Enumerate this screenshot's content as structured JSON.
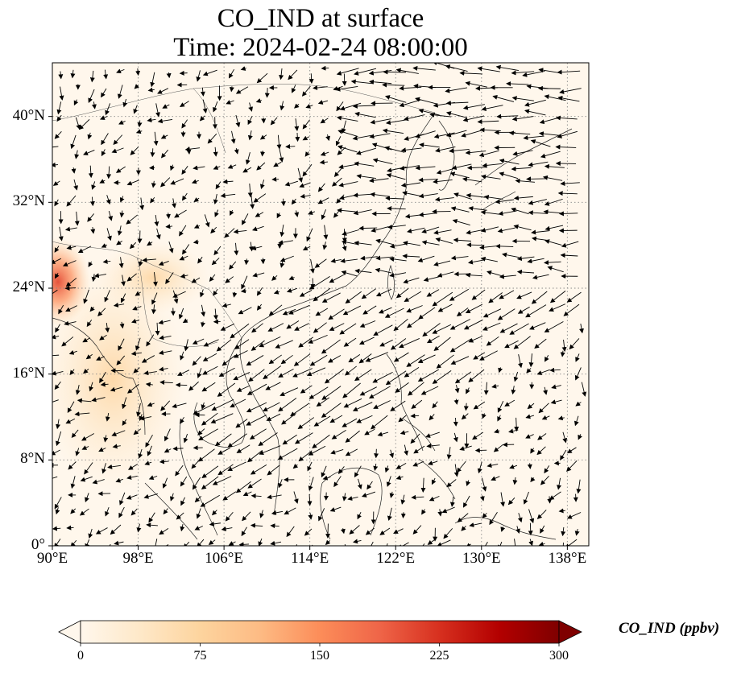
{
  "title_line1": "CO_IND at surface",
  "title_line2": "Time: 2024-02-24 08:00:00",
  "map": {
    "lon_range": [
      90,
      140
    ],
    "lat_range": [
      0,
      45
    ],
    "lon_ticks": [
      {
        "value": 90,
        "label": "90°E"
      },
      {
        "value": 98,
        "label": "98°E"
      },
      {
        "value": 106,
        "label": "106°E"
      },
      {
        "value": 114,
        "label": "114°E"
      },
      {
        "value": 122,
        "label": "122°E"
      },
      {
        "value": 130,
        "label": "130°E"
      },
      {
        "value": 138,
        "label": "138°E"
      }
    ],
    "lat_ticks": [
      {
        "value": 0,
        "label": "0°"
      },
      {
        "value": 8,
        "label": "8°N"
      },
      {
        "value": 16,
        "label": "16°N"
      },
      {
        "value": 24,
        "label": "24°N"
      },
      {
        "value": 32,
        "label": "32°N"
      },
      {
        "value": 40,
        "label": "40°N"
      }
    ],
    "gridlines": true,
    "field_colormap": "OrRd",
    "background_color": "#fff7ec",
    "high_concentration_region": "west edge near 90°E, 22–27°N"
  },
  "colorbar": {
    "label": "CO_IND (ppbv)",
    "range": [
      0,
      300
    ],
    "extend": "both",
    "ticks": [
      {
        "value": 0,
        "label": "0"
      },
      {
        "value": 75,
        "label": "75"
      },
      {
        "value": 150,
        "label": "150"
      },
      {
        "value": 225,
        "label": "225"
      },
      {
        "value": 300,
        "label": "300"
      }
    ],
    "colors": [
      "#fff7ec",
      "#fee8c8",
      "#fdd49e",
      "#fdbb84",
      "#fc8d59",
      "#ef6548",
      "#d7301f",
      "#b30000",
      "#7f0000"
    ]
  }
}
